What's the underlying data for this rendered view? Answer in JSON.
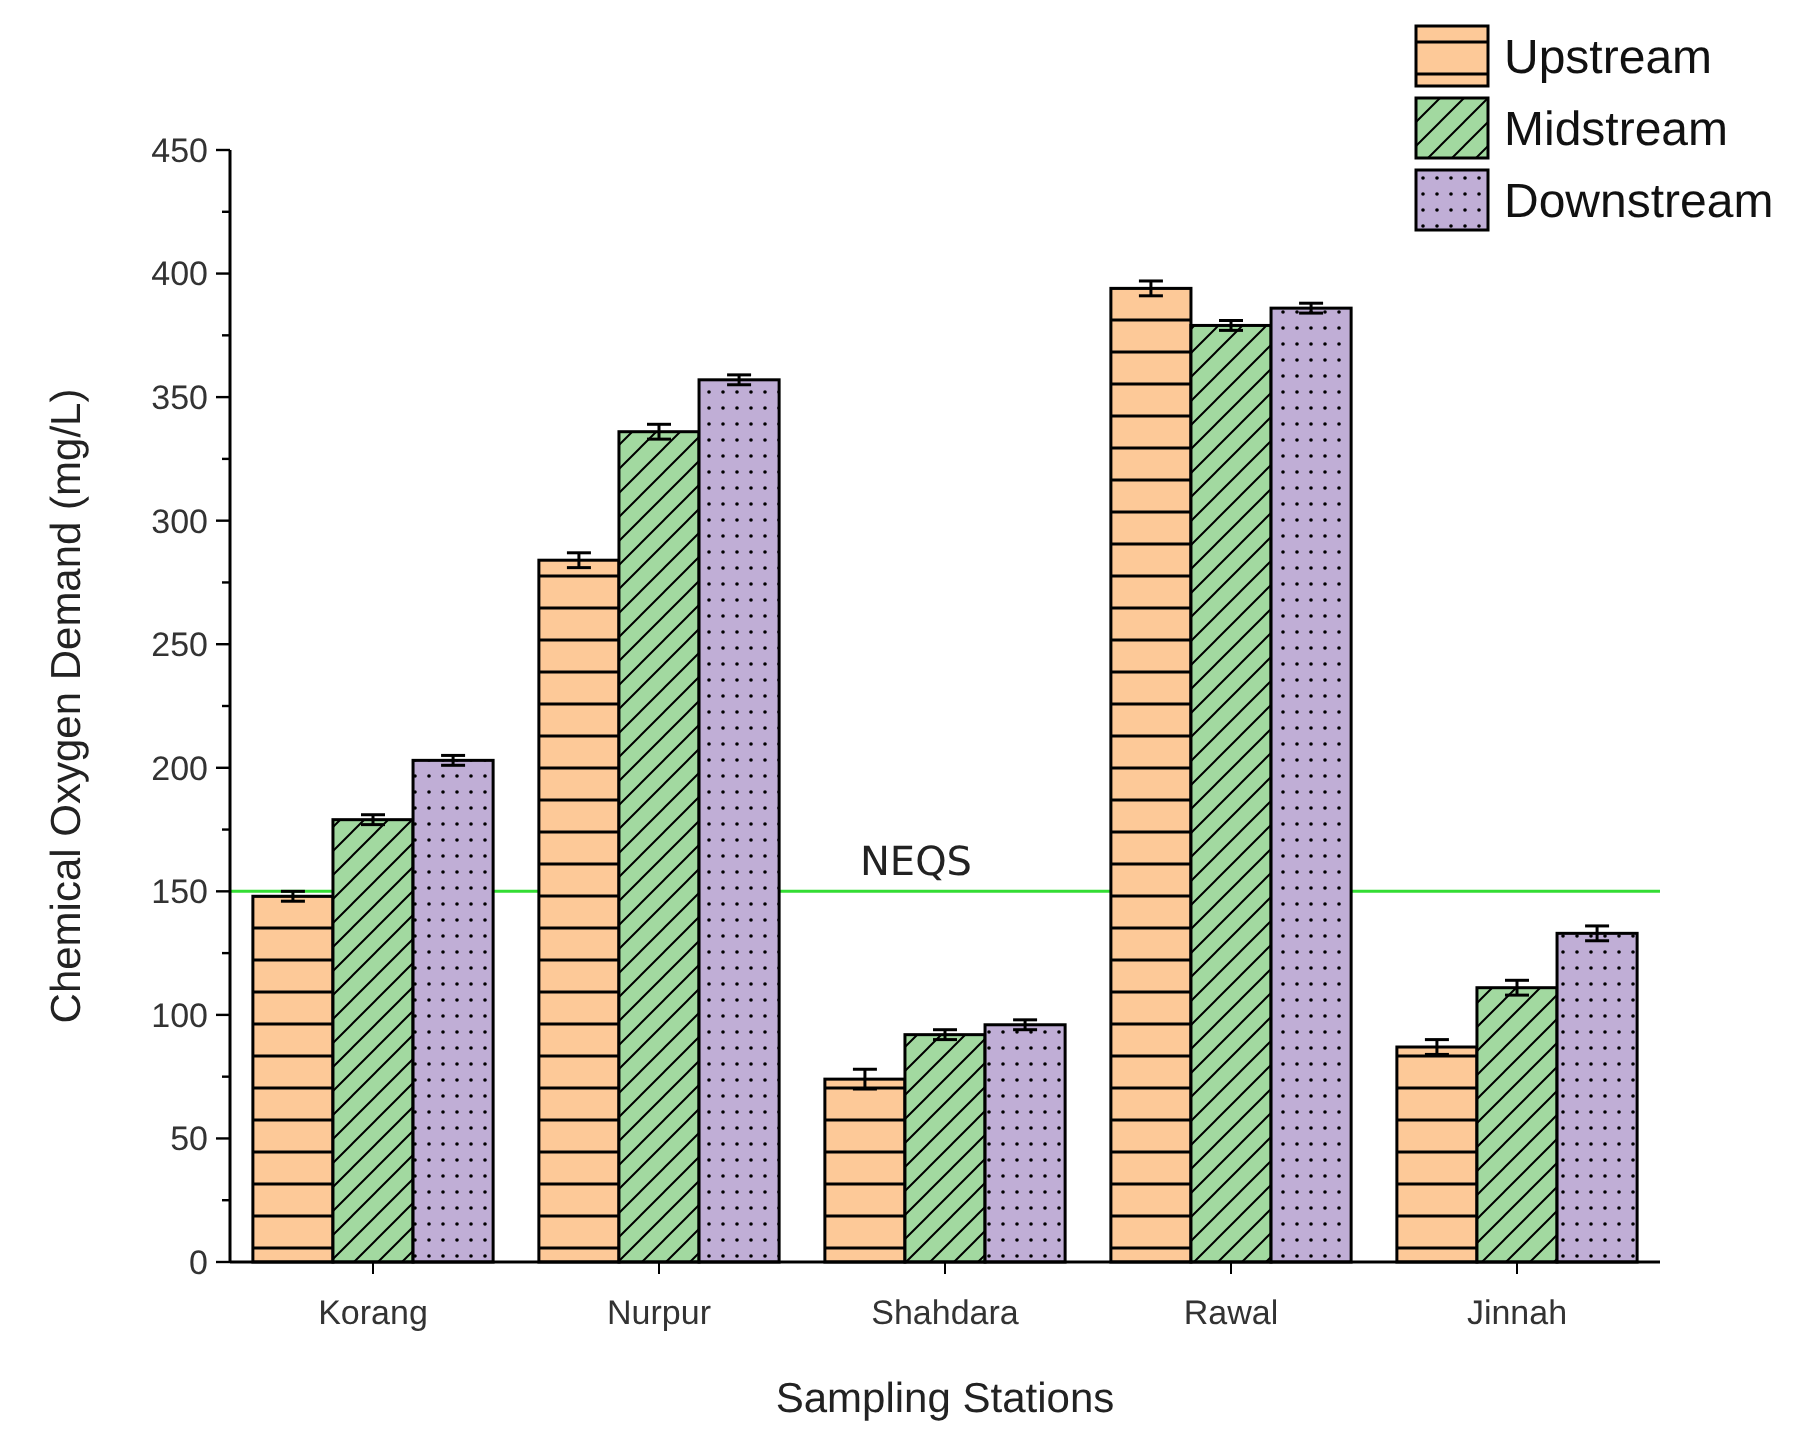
{
  "chart_data": {
    "type": "bar",
    "xlabel": "Sampling Stations",
    "ylabel": "Chemical Oxygen Demand (mg/L)",
    "categories": [
      "Korang",
      "Nurpur",
      "Shahdara",
      "Rawal",
      "Jinnah"
    ],
    "series": [
      {
        "name": "Upstream",
        "color": "#fdc998",
        "values": [
          148,
          284,
          74,
          394,
          87
        ],
        "errors": [
          2,
          3,
          4,
          3,
          3
        ]
      },
      {
        "name": "Midstream",
        "color": "#a2d9a0",
        "values": [
          179,
          336,
          92,
          379,
          111
        ],
        "errors": [
          2,
          3,
          2,
          2,
          3
        ]
      },
      {
        "name": "Downstream",
        "color": "#c0aed6",
        "values": [
          203,
          357,
          96,
          386,
          133
        ],
        "errors": [
          2,
          2,
          2,
          2,
          3
        ]
      }
    ],
    "ylim": [
      0,
      450
    ],
    "yticks": [
      0,
      {
        "value": 25,
        "label": null
      },
      50,
      {
        "value": 75,
        "label": null
      },
      100,
      {
        "value": 125,
        "label": null
      },
      150,
      {
        "value": 175,
        "label": null
      },
      200,
      {
        "value": 225,
        "label": null
      },
      250,
      {
        "value": 275,
        "label": null
      },
      300,
      {
        "value": 325,
        "label": null
      },
      350,
      {
        "value": 375,
        "label": null
      },
      400,
      {
        "value": 425,
        "label": null
      },
      450
    ],
    "ref_lines": [
      {
        "axis": "y",
        "value": 150,
        "label": "NEQS",
        "color": "#33dd33"
      }
    ],
    "grid": false,
    "legend": "top right"
  }
}
